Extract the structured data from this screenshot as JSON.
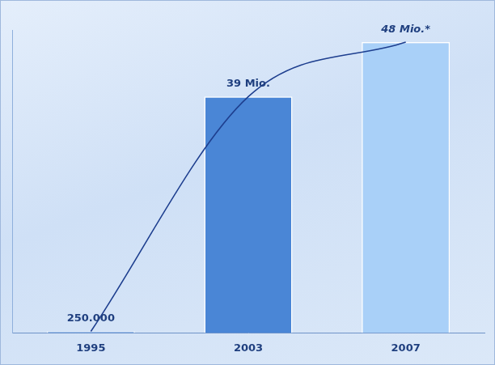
{
  "chart_data": {
    "type": "bar",
    "categories": [
      "1995",
      "2003",
      "2007"
    ],
    "series": [
      {
        "type": "bar",
        "values": [
          250000,
          39000000,
          48000000
        ],
        "value_labels": [
          "250.000",
          "39 Mio.",
          "48 Mio.*"
        ],
        "colors": [
          "#4a86d6",
          "#4a86d6",
          "#a9d0f8"
        ]
      },
      {
        "type": "line",
        "values": [
          250000,
          39000000,
          48000000
        ],
        "color": "#1e3f8f"
      }
    ],
    "ylim": [
      0,
      50000000
    ],
    "tick_labels": "x",
    "data_labels": true,
    "grid": false
  }
}
